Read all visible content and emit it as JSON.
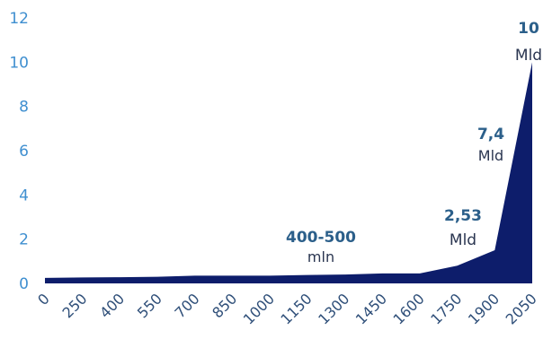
{
  "chart_data": {
    "type": "area",
    "title": "",
    "xlabel": "",
    "ylabel": "",
    "x_ticks": [
      "0",
      "250",
      "400",
      "550",
      "700",
      "850",
      "1000",
      "1150",
      "1300",
      "1450",
      "1600",
      "1750",
      "1900",
      "2050"
    ],
    "y_ticks": [
      "0",
      "2",
      "4",
      "6",
      "8",
      "10",
      "12"
    ],
    "ylim": [
      0,
      12
    ],
    "grid": false,
    "color": "#0d1d6b",
    "series": [
      {
        "values": [
          0.25,
          0.27,
          0.28,
          0.3,
          0.35,
          0.35,
          0.35,
          0.38,
          0.4,
          0.45,
          0.45,
          0.8,
          1.5,
          10.0
        ]
      }
    ],
    "annotations": [
      {
        "value": "400-500",
        "unit": "mln"
      },
      {
        "value": "2,53",
        "unit": "Mld"
      },
      {
        "value": "7,4",
        "unit": "Mld"
      },
      {
        "value": "10",
        "unit": "Mld"
      }
    ]
  }
}
